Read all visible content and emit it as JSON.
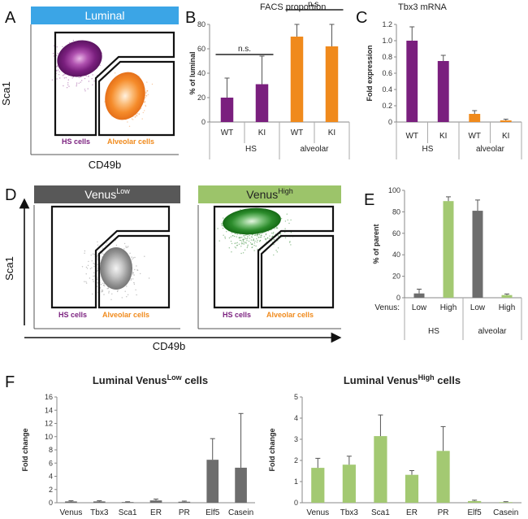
{
  "colors": {
    "purple": "#7a1f7e",
    "orange": "#f08a1c",
    "dgrey": "#6d6d6d",
    "lgreen": "#a3c972",
    "luminal_banner": "#3ba5e6",
    "venus_low_banner": "#585858",
    "venus_high_banner": "#9cc46a",
    "dgreen": "#1e7a1e"
  },
  "panels": {
    "a": {
      "letter": "A",
      "banner": "Luminal",
      "xlabel": "CD49b",
      "ylabel": "Sca1",
      "hs_label": "HS cells",
      "alv_label": "Alveolar cells"
    },
    "d": {
      "letter": "D",
      "low_banner": "Venus",
      "low_sup": "Low",
      "high_banner": "Venus",
      "high_sup": "High",
      "xlabel": "CD49b",
      "ylabel": "Sca1",
      "hs_label": "HS cells",
      "alv_label": "Alveolar cells"
    },
    "b": {
      "letter": "B"
    },
    "c": {
      "letter": "C"
    },
    "e": {
      "letter": "E"
    },
    "f": {
      "letter": "F",
      "title_low": "Luminal Venus",
      "title_low_sup": "Low",
      "title_low_tail": " cells",
      "title_high": "Luminal Venus",
      "title_high_sup": "High",
      "title_high_tail": " cells"
    }
  },
  "chart_data": [
    {
      "id": "b",
      "type": "bar",
      "title": "FACS proportion",
      "ylabel": "% of luminal",
      "ylim": [
        0,
        80
      ],
      "yticks": [
        0,
        20,
        40,
        60,
        80
      ],
      "categories": [
        "WT",
        "KI",
        "WT",
        "KI"
      ],
      "groups": [
        "HS",
        "alveolar"
      ],
      "values": [
        20,
        31,
        70,
        62
      ],
      "errors": [
        16,
        23,
        15,
        21
      ],
      "bar_colors": [
        "purple",
        "purple",
        "orange",
        "orange"
      ],
      "annotations": [
        "n.s.",
        "n.s."
      ]
    },
    {
      "id": "c",
      "type": "bar",
      "title": "Tbx3 mRNA",
      "ylabel": "Fold expression",
      "ylim": [
        0,
        1.2
      ],
      "yticks": [
        0,
        0.2,
        0.4,
        0.6,
        0.8,
        1.0,
        1.2
      ],
      "ytick_labels": [
        "0",
        "0.2",
        "0.4",
        "0.6",
        "0.8",
        "1.0",
        "1.2"
      ],
      "categories": [
        "WT",
        "KI",
        "WT",
        "KI"
      ],
      "groups": [
        "HS",
        "alveolar"
      ],
      "values": [
        1.0,
        0.75,
        0.1,
        0.02
      ],
      "errors": [
        0.17,
        0.07,
        0.04,
        0.015
      ],
      "bar_colors": [
        "purple",
        "purple",
        "orange",
        "orange"
      ]
    },
    {
      "id": "e",
      "type": "bar",
      "ylabel": "% of parent",
      "ylim": [
        0,
        100
      ],
      "yticks": [
        0,
        20,
        40,
        60,
        80,
        100
      ],
      "row_label": "Venus:",
      "categories": [
        "Low",
        "High",
        "Low",
        "High"
      ],
      "groups": [
        "HS",
        "alveolar"
      ],
      "values": [
        4,
        90,
        81,
        2.5
      ],
      "errors": [
        4,
        4,
        10,
        1
      ],
      "bar_colors": [
        "dgrey",
        "lgreen",
        "dgrey",
        "lgreen"
      ]
    },
    {
      "id": "f1",
      "type": "bar",
      "ylabel": "Fold change",
      "ylim": [
        0,
        16
      ],
      "yticks": [
        0,
        2,
        4,
        6,
        8,
        10,
        12,
        14,
        16
      ],
      "categories": [
        "Venus",
        "Tbx3",
        "Sca1",
        "ER",
        "PR",
        "Elf5",
        "Casein"
      ],
      "values": [
        0.2,
        0.2,
        0.1,
        0.35,
        0.15,
        6.5,
        5.3
      ],
      "errors": [
        0.1,
        0.1,
        0.05,
        0.2,
        0.1,
        3.2,
        8.2
      ],
      "bar_colors": [
        "dgrey",
        "dgrey",
        "dgrey",
        "dgrey",
        "dgrey",
        "dgrey",
        "dgrey"
      ]
    },
    {
      "id": "f2",
      "type": "bar",
      "ylabel": "Fold change",
      "ylim": [
        0,
        5
      ],
      "yticks": [
        0,
        1,
        2,
        3,
        4,
        5
      ],
      "categories": [
        "Venus",
        "Tbx3",
        "Sca1",
        "ER",
        "PR",
        "Elf5",
        "Casein"
      ],
      "values": [
        1.65,
        1.8,
        3.15,
        1.32,
        2.45,
        0.08,
        0.03
      ],
      "errors": [
        0.45,
        0.4,
        1.0,
        0.2,
        1.15,
        0.04,
        0.02
      ],
      "bar_colors": [
        "lgreen",
        "lgreen",
        "lgreen",
        "lgreen",
        "lgreen",
        "lgreen",
        "lgreen"
      ]
    }
  ]
}
